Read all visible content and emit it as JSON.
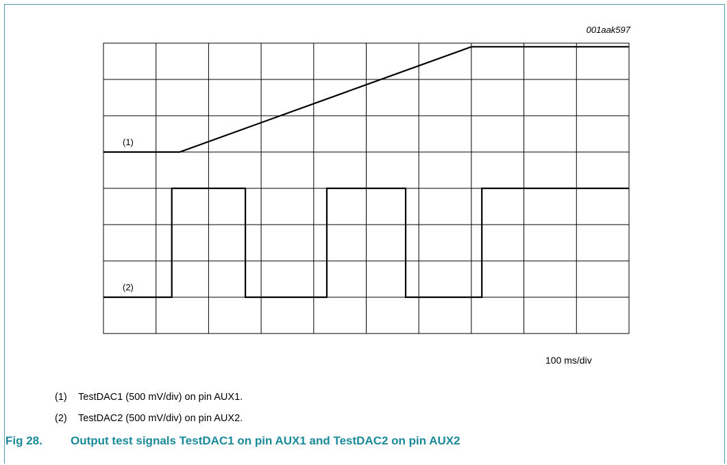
{
  "figure_id": "001aak597",
  "timebase_label": "100 ms/div",
  "notes": [
    {
      "number": "(1)",
      "text": "TestDAC1 (500 mV/div) on pin AUX1."
    },
    {
      "number": "(2)",
      "text": "TestDAC2 (500 mV/div) on pin AUX2."
    }
  ],
  "caption": {
    "figure": "Fig 28.",
    "title": "Output test signals TestDAC1 on pin AUX1 and TestDAC2 on pin AUX2"
  },
  "colors": {
    "caption": "#1a8a9b",
    "frame": "#4e9aa4",
    "grid": "#000000",
    "trace": "#000000"
  },
  "chart_data": {
    "type": "line",
    "grid": true,
    "x_divisions": 10,
    "y_divisions": 8,
    "xlim": [
      0,
      10
    ],
    "ylim": [
      0,
      8
    ],
    "xlabel": "100 ms/div",
    "series": [
      {
        "name": "(1)",
        "x": [
          0,
          1.45,
          7.0,
          10.0
        ],
        "y": [
          5.0,
          5.0,
          7.9,
          7.9
        ]
      },
      {
        "name": "(2)",
        "x": [
          0,
          1.3,
          1.3,
          2.7,
          2.7,
          4.25,
          4.25,
          5.75,
          5.75,
          7.2,
          7.2,
          10.0
        ],
        "y": [
          1.0,
          1.0,
          4.0,
          4.0,
          1.0,
          1.0,
          4.0,
          4.0,
          1.0,
          1.0,
          4.0,
          4.0
        ]
      }
    ]
  }
}
